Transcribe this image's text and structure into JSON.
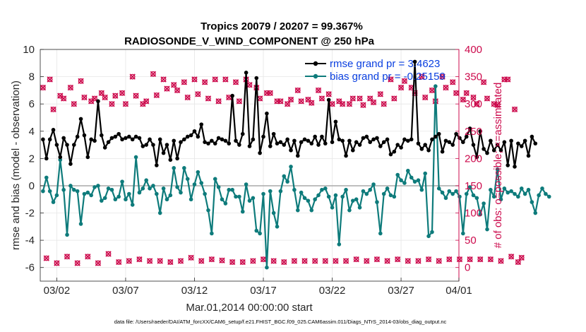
{
  "chart_data": {
    "type": "line",
    "title_line1": "Tropics 20079 / 20207 = 99.367%",
    "title_line2": "RADIOSONDE_V_WIND_COMPONENT @ 250 hPa",
    "xlabel": "Mar.01,2014 00:00:00 start",
    "ylabel_left": "rmse and bias (model - observation)",
    "ylabel_right": "# of obs: o=possible; ×=assimilated",
    "ylim_left": [
      -7,
      10
    ],
    "ylim_right": [
      -25,
      400
    ],
    "xlim_days": [
      0.8,
      31.2
    ],
    "yticks_left": [
      -6,
      -4,
      -2,
      0,
      2,
      4,
      6,
      8,
      10
    ],
    "yticks_right": [
      0,
      50,
      100,
      150,
      200,
      250,
      300,
      350,
      400
    ],
    "xticks": [
      {
        "day": 2,
        "label": "03/02"
      },
      {
        "day": 7,
        "label": "03/07"
      },
      {
        "day": 12,
        "label": "03/12"
      },
      {
        "day": 17,
        "label": "03/17"
      },
      {
        "day": 22,
        "label": "03/22"
      },
      {
        "day": 27,
        "label": "03/27"
      },
      {
        "day": 32,
        "label": "04/01"
      }
    ],
    "zero_line": 0,
    "x_start_day": 1.0,
    "x_step_day": 0.25,
    "series": [
      {
        "name": "rmse",
        "legend": "rmse grand pr = 3.4623",
        "color": "#000000",
        "values": [
          3.4,
          2.0,
          3.4,
          4.1,
          3.0,
          2.1,
          3.5,
          3.0,
          1.6,
          3.0,
          3.6,
          4.9,
          3.7,
          2.1,
          3.4,
          3.3,
          6.2,
          3.7,
          2.8,
          3.2,
          3.5,
          3.6,
          3.8,
          3.4,
          3.5,
          3.6,
          3.4,
          3.6,
          3.5,
          2.9,
          3.0,
          3.4,
          3.0,
          1.5,
          3.4,
          2.4,
          3.0,
          1.9,
          3.3,
          2.0,
          3.2,
          3.4,
          3.6,
          3.7,
          4.0,
          3.6,
          4.5,
          3.2,
          3.1,
          3.3,
          3.1,
          3.5,
          3.4,
          3.3,
          3.1,
          6.6,
          3.3,
          3.0,
          3.8,
          8.3,
          2.9,
          3.4,
          7.9,
          2.4,
          3.6,
          5.3,
          2.9,
          3.8,
          3.1,
          3.2,
          3.0,
          3.4,
          2.6,
          3.3,
          2.2,
          3.2,
          3.4,
          3.3,
          3.1,
          3.6,
          3.0,
          3.6,
          3.1,
          6.3,
          3.2,
          4.7,
          3.4,
          3.3,
          2.2,
          3.3,
          2.6,
          3.2,
          3.0,
          3.5,
          3.6,
          3.2,
          3.4,
          3.5,
          2.9,
          3.2,
          3.4,
          2.3,
          2.5,
          3.0,
          2.8,
          3.4,
          3.3,
          3.4,
          9.1,
          3.1,
          2.7,
          3.0,
          2.6,
          3.4,
          3.6,
          3.8,
          2.5,
          3.3,
          3.2,
          3.0,
          3.8,
          3.5,
          3.2,
          3.6,
          4.2,
          3.0,
          2.1,
          4.0,
          2.7,
          2.4,
          3.3,
          2.6,
          3.0,
          2.6,
          3.2,
          1.5,
          3.3,
          1.4,
          3.1,
          2.9,
          3.3,
          2.2,
          3.6,
          3.1
        ]
      },
      {
        "name": "bias",
        "legend": "bias grand pr = -0.25159",
        "color": "#0e7b7b",
        "values": [
          -0.4,
          0.6,
          -0.4,
          -1.2,
          -0.7,
          1.9,
          -0.3,
          -3.6,
          0.0,
          -0.3,
          -0.4,
          -2.8,
          -0.6,
          -0.5,
          -0.7,
          -0.1,
          0.0,
          -1.1,
          -0.9,
          -0.2,
          -0.3,
          -1.0,
          -0.8,
          0.3,
          -1.0,
          -0.6,
          -1.4,
          2.1,
          -0.5,
          -0.2,
          0.4,
          -0.2,
          0.0,
          -0.6,
          -2.0,
          -0.2,
          -1.0,
          -0.7,
          1.3,
          -0.1,
          -0.5,
          1.3,
          0.5,
          -1.0,
          0.1,
          1.0,
          0.2,
          -0.6,
          -1.8,
          -3.5,
          0.5,
          -0.1,
          -1.0,
          -1.3,
          -0.3,
          -0.3,
          -0.8,
          -0.8,
          -1.9,
          0.1,
          -1.1,
          -0.9,
          -3.3,
          -3.5,
          -0.6,
          -6.0,
          -0.4,
          -2.0,
          -3.0,
          -0.4,
          0.7,
          0.3,
          1.4,
          -0.3,
          -1.8,
          -0.5,
          -0.9,
          -1.1,
          -1.8,
          -1.0,
          -0.7,
          -0.3,
          -0.2,
          -0.8,
          -1.6,
          -0.7,
          -4.3,
          -0.8,
          -0.3,
          -1.8,
          -1.1,
          -1.0,
          -1.6,
          -0.4,
          -0.6,
          -0.3,
          0.1,
          -1.2,
          -3.5,
          -0.6,
          -0.2,
          -0.7,
          -0.8,
          0.8,
          0.4,
          0.2,
          1.1,
          0.6,
          0.3,
          0.4,
          -0.3,
          0.9,
          -3.7,
          -3.4,
          7.3,
          -0.2,
          -0.5,
          -0.9,
          -0.4,
          -0.6,
          -0.4,
          -0.8,
          -3.5,
          -0.6,
          -0.1,
          -0.7,
          -0.9,
          -2.1,
          -1.3,
          -3.2,
          -0.3,
          -0.8,
          1.2,
          -1.0,
          -0.2,
          -0.5,
          -0.4,
          -0.6,
          -0.8,
          -0.2,
          -0.6,
          -0.3,
          -1.2,
          -2.0,
          -0.7,
          -0.2,
          -0.6,
          -0.8
        ]
      },
      {
        "name": "possible",
        "color": "#cc0a4c",
        "marker": "o",
        "values": [
          330,
          17,
          345,
          290,
          8,
          315,
          310,
          20,
          330,
          300,
          8,
          342,
          312,
          20,
          305,
          310,
          8,
          320,
          312,
          25,
          300,
          315,
          10,
          320,
          300,
          12,
          350,
          315,
          15,
          300,
          305,
          12,
          355,
          316,
          12,
          345,
          328,
          10,
          335,
          325,
          12,
          340,
          312,
          18,
          345,
          318,
          12,
          340,
          310,
          15,
          345,
          305,
          13,
          345,
          312,
          10,
          340,
          305,
          10,
          345,
          335,
          12,
          330,
          310,
          15,
          320,
          320,
          12,
          305,
          305,
          10,
          300,
          308,
          12,
          325,
          305,
          12,
          308,
          302,
          12,
          325,
          310,
          12,
          318,
          300,
          12,
          305,
          300,
          12,
          300,
          310,
          15,
          310,
          298,
          12,
          310,
          303,
          15,
          318,
          300,
          12,
          345,
          310,
          15,
          330,
          342,
          12,
          330,
          320,
          12,
          350,
          312,
          15,
          325,
          305,
          12,
          350,
          330,
          15,
          340,
          320,
          15,
          308,
          320,
          15,
          312,
          300,
          15,
          340,
          310,
          15,
          300,
          298,
          12,
          345,
          345,
          20,
          290,
          10,
          18
        ]
      },
      {
        "name": "assimilated",
        "color": "#cc0a4c",
        "marker": "x",
        "values": [
          330,
          17,
          345,
          290,
          8,
          315,
          310,
          20,
          330,
          300,
          8,
          342,
          312,
          20,
          305,
          310,
          8,
          320,
          312,
          25,
          300,
          315,
          10,
          320,
          300,
          12,
          350,
          315,
          15,
          300,
          305,
          12,
          355,
          316,
          12,
          345,
          328,
          10,
          335,
          325,
          12,
          340,
          312,
          18,
          345,
          318,
          12,
          340,
          310,
          15,
          345,
          305,
          13,
          345,
          312,
          10,
          340,
          305,
          10,
          345,
          335,
          12,
          330,
          310,
          15,
          320,
          320,
          12,
          305,
          305,
          10,
          300,
          308,
          12,
          325,
          305,
          12,
          308,
          302,
          12,
          325,
          310,
          12,
          318,
          300,
          12,
          305,
          300,
          12,
          300,
          310,
          15,
          310,
          298,
          12,
          310,
          303,
          15,
          318,
          300,
          12,
          345,
          310,
          15,
          330,
          342,
          12,
          330,
          320,
          12,
          350,
          312,
          15,
          325,
          305,
          12,
          350,
          330,
          15,
          340,
          320,
          15,
          308,
          320,
          15,
          312,
          300,
          15,
          340,
          310,
          15,
          300,
          298,
          12,
          345,
          345,
          20,
          290,
          10,
          18
        ]
      }
    ]
  },
  "footer": "data file: /Users/raeder/DAI/ATM_forcXX/CAM6_setup/f.e21.FHIST_BGC.f09_025.CAM6assim.011/Diags_NTrS_2014-03/obs_diag_output.nc"
}
